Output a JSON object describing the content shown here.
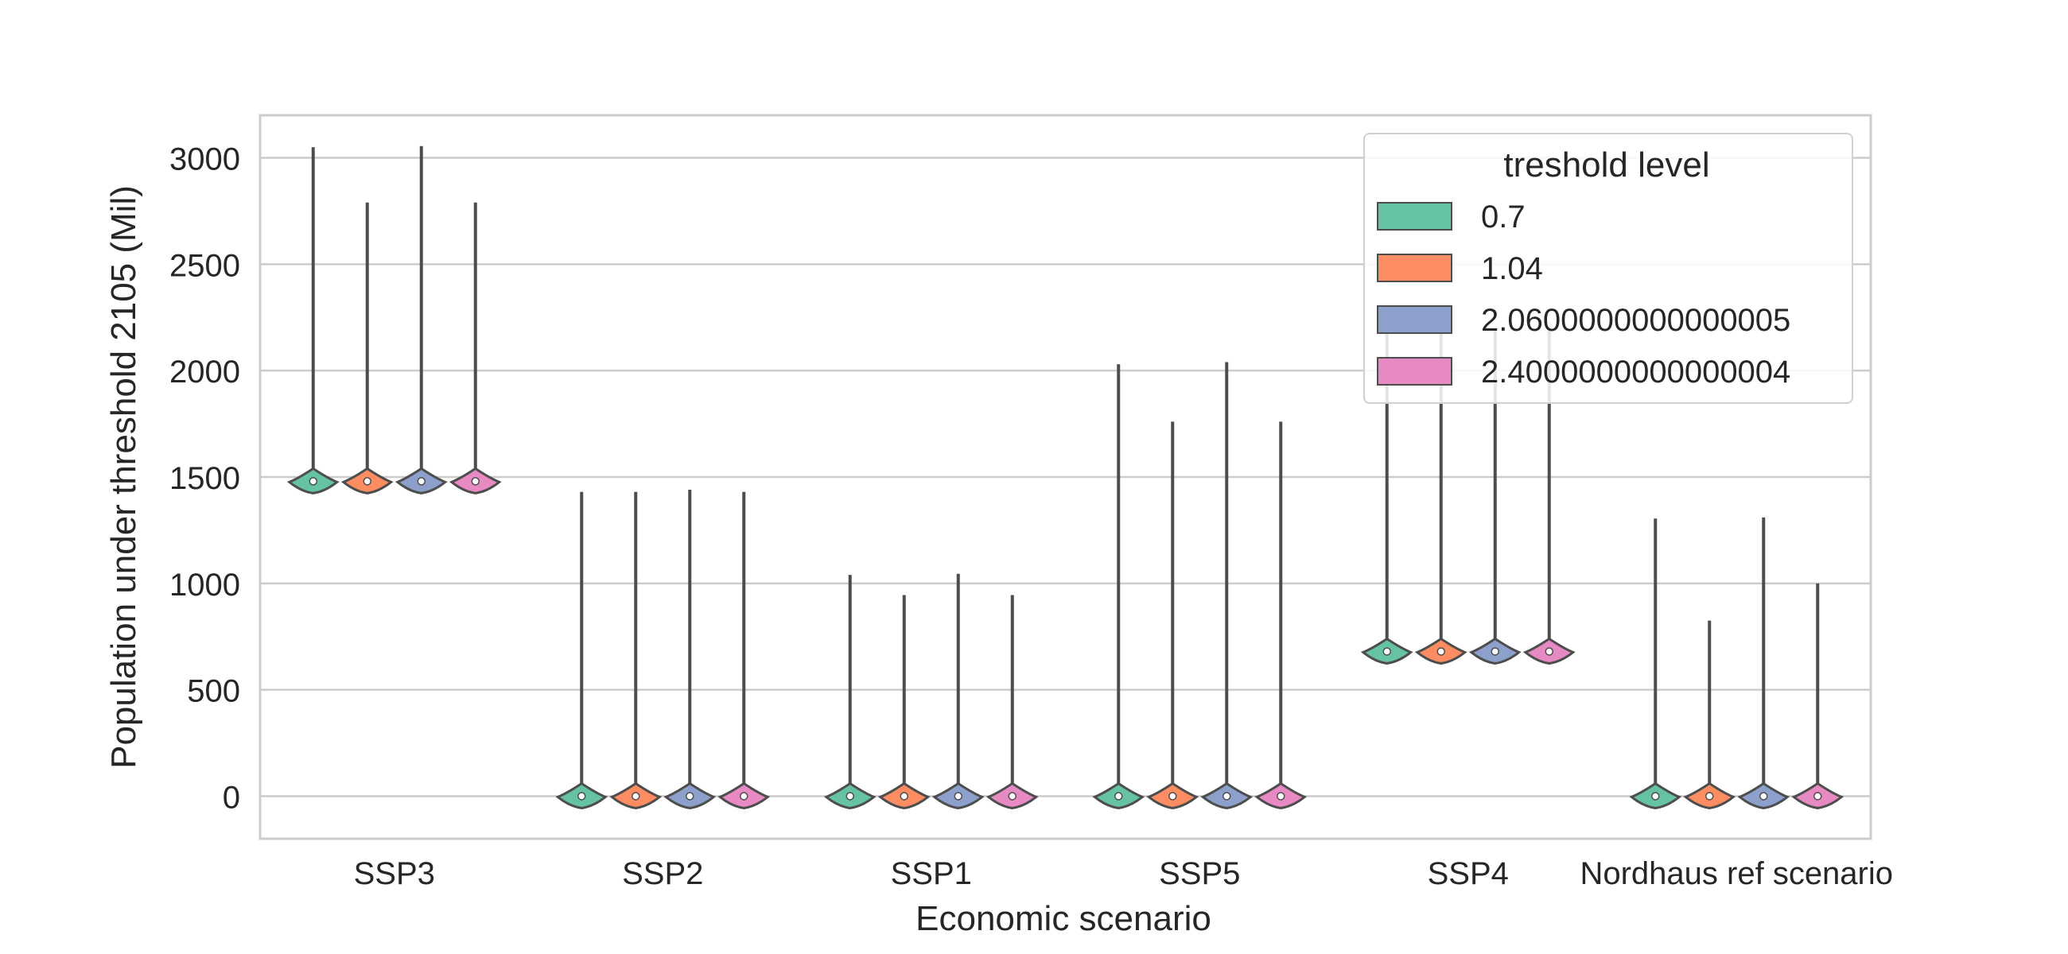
{
  "chart_data": {
    "type": "violin",
    "title": "",
    "xlabel": "Economic scenario",
    "ylabel": "Population under threshold 2105 (Mil)",
    "ylim": [
      -200,
      3200
    ],
    "yticks": [
      0,
      500,
      1000,
      1500,
      2000,
      2500,
      3000
    ],
    "ytick_labels": [
      "0",
      "500",
      "1000",
      "1500",
      "2000",
      "2500",
      "3000"
    ],
    "grid": "horizontal",
    "categories": [
      "SSP3",
      "SSP2",
      "SSP1",
      "SSP5",
      "SSP4",
      "Nordhaus ref scenario"
    ],
    "legend": {
      "title": "treshold level",
      "placement": "top-right"
    },
    "series": [
      {
        "name": "0.7",
        "color": "#66c2a5",
        "min": [
          1470,
          -30,
          -5,
          -30,
          650,
          -5
        ],
        "max": [
          3050,
          1430,
          1040,
          2030,
          2200,
          1305
        ],
        "median": [
          1480,
          0,
          0,
          0,
          680,
          0
        ]
      },
      {
        "name": "1.04",
        "color": "#fc8d62",
        "min": [
          1470,
          -25,
          -5,
          -25,
          650,
          -5
        ],
        "max": [
          2790,
          1430,
          945,
          1760,
          2200,
          825
        ],
        "median": [
          1480,
          0,
          0,
          0,
          680,
          0
        ]
      },
      {
        "name": "2.0600000000000005",
        "color": "#8da0cb",
        "min": [
          1470,
          -30,
          -5,
          -30,
          650,
          -5
        ],
        "max": [
          3055,
          1440,
          1045,
          2040,
          2200,
          1310
        ],
        "median": [
          1480,
          0,
          0,
          0,
          680,
          0
        ]
      },
      {
        "name": "2.4000000000000004",
        "color": "#e78ac3",
        "min": [
          1470,
          -25,
          -5,
          -25,
          650,
          -5
        ],
        "max": [
          2790,
          1430,
          945,
          1760,
          2200,
          1000
        ],
        "median": [
          1480,
          0,
          0,
          0,
          680,
          0
        ]
      }
    ]
  }
}
